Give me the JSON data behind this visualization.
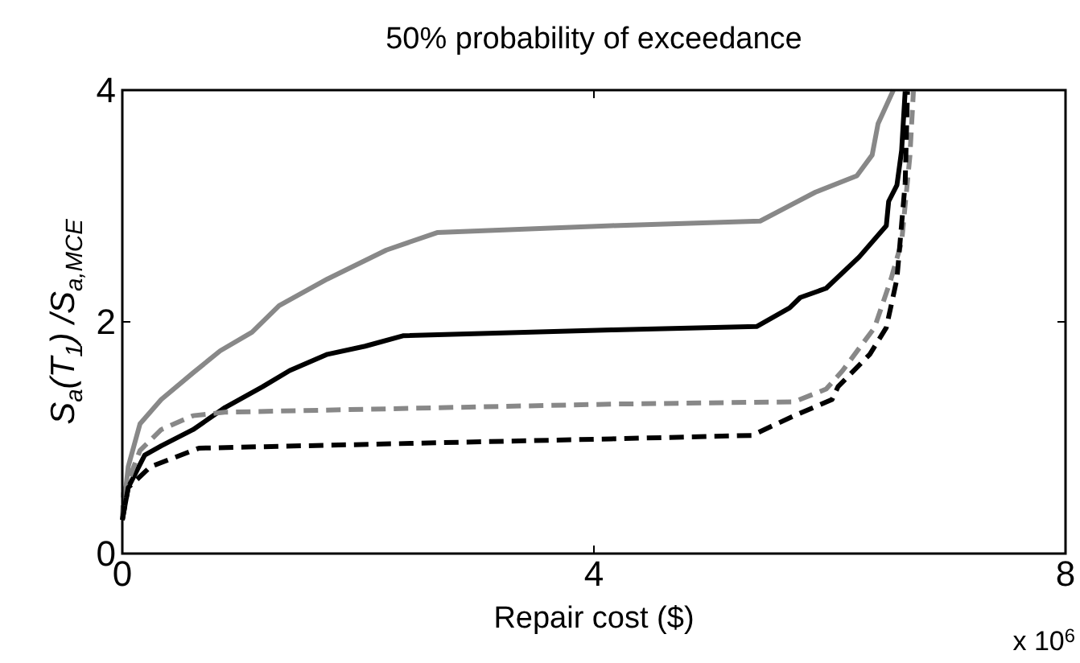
{
  "chart_data": {
    "type": "line",
    "title": "50% probability of exceedance",
    "xlabel": "Repair cost ($)",
    "ylabel": "S$_{a}$(T$_{1}$) /S$_{a,MCE}$",
    "annotations": [
      "x 10$^{6}$"
    ],
    "xlim": [
      0,
      8
    ],
    "ylim": [
      0,
      4
    ],
    "xticks": [
      0,
      4,
      8
    ],
    "yticks": [
      0,
      2,
      4
    ],
    "grid": false,
    "marker": "none",
    "series": [
      {
        "color": "#888888",
        "line_style": "solid",
        "x": [
          0,
          0.05,
          0.15,
          0.33,
          0.6,
          0.83,
          1.1,
          1.33,
          1.74,
          2.24,
          2.67,
          4.15,
          5.41,
          5.88,
          6.23,
          6.36,
          6.41,
          6.54
        ],
        "values": [
          0.29,
          0.75,
          1.12,
          1.33,
          1.56,
          1.75,
          1.91,
          2.14,
          2.37,
          2.62,
          2.77,
          2.83,
          2.87,
          3.12,
          3.26,
          3.44,
          3.71,
          4.0
        ]
      },
      {
        "color": "#000000",
        "line_style": "solid",
        "x": [
          0,
          0.05,
          0.19,
          0.33,
          0.6,
          0.87,
          1.19,
          1.42,
          1.74,
          2.06,
          2.38,
          4.15,
          5.38,
          5.66,
          5.75,
          5.97,
          6.25,
          6.48,
          6.5,
          6.57,
          6.61,
          6.64
        ],
        "values": [
          0.29,
          0.57,
          0.85,
          0.93,
          1.07,
          1.26,
          1.44,
          1.58,
          1.72,
          1.79,
          1.88,
          1.93,
          1.96,
          2.12,
          2.21,
          2.29,
          2.56,
          2.83,
          3.04,
          3.18,
          3.48,
          3.99
        ]
      },
      {
        "color": "#888888",
        "line_style": "dashed",
        "x": [
          0,
          0.01,
          0.15,
          0.33,
          0.6,
          0.87,
          4.15,
          5.7,
          5.97,
          6.11,
          6.38,
          6.52,
          6.61,
          6.68,
          6.71
        ],
        "values": [
          0.29,
          0.52,
          0.89,
          1.07,
          1.19,
          1.22,
          1.29,
          1.31,
          1.42,
          1.58,
          1.95,
          2.37,
          2.69,
          3.43,
          3.99
        ]
      },
      {
        "color": "#000000",
        "line_style": "dashed",
        "x": [
          0,
          0.05,
          0.24,
          0.65,
          4.15,
          5.34,
          5.7,
          6.02,
          6.07,
          6.34,
          6.48,
          6.57,
          6.64,
          6.66
        ],
        "values": [
          0.29,
          0.57,
          0.75,
          0.91,
          0.99,
          1.02,
          1.19,
          1.33,
          1.44,
          1.72,
          1.95,
          2.37,
          3.2,
          3.99
        ]
      }
    ]
  }
}
